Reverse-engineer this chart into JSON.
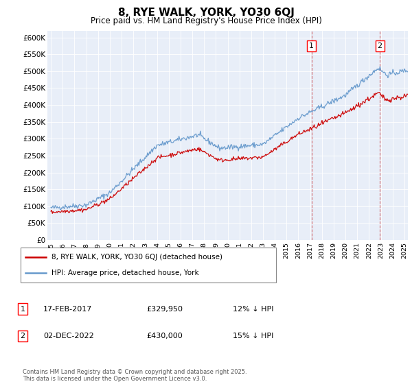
{
  "title": "8, RYE WALK, YORK, YO30 6QJ",
  "subtitle": "Price paid vs. HM Land Registry's House Price Index (HPI)",
  "footer": "Contains HM Land Registry data © Crown copyright and database right 2025.\nThis data is licensed under the Open Government Licence v3.0.",
  "legend_line1": "8, RYE WALK, YORK, YO30 6QJ (detached house)",
  "legend_line2": "HPI: Average price, detached house, York",
  "transaction1_date": "17-FEB-2017",
  "transaction1_price": "£329,950",
  "transaction1_note": "12% ↓ HPI",
  "transaction2_date": "02-DEC-2022",
  "transaction2_price": "£430,000",
  "transaction2_note": "15% ↓ HPI",
  "red_color": "#cc0000",
  "blue_color": "#6699cc",
  "background_color": "#e8eef8",
  "ylim": [
    0,
    620000
  ],
  "yticks": [
    0,
    50000,
    100000,
    150000,
    200000,
    250000,
    300000,
    350000,
    400000,
    450000,
    500000,
    550000,
    600000
  ],
  "ytick_labels": [
    "£0",
    "£50K",
    "£100K",
    "£150K",
    "£200K",
    "£250K",
    "£300K",
    "£350K",
    "£400K",
    "£450K",
    "£500K",
    "£550K",
    "£600K"
  ],
  "transaction1_x": 2017.12,
  "transaction2_x": 2022.92,
  "xmin": 1994.7,
  "xmax": 2025.3
}
